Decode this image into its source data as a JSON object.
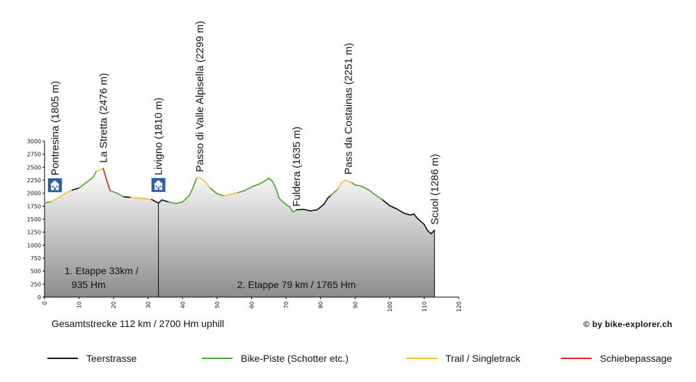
{
  "chart_data": {
    "type": "area",
    "xlim": [
      0,
      120
    ],
    "ylim": [
      0,
      3000
    ],
    "x_ticks": [
      0,
      10,
      20,
      30,
      40,
      50,
      60,
      70,
      80,
      90,
      100,
      110,
      120
    ],
    "y_ticks": [
      0,
      250,
      500,
      750,
      1000,
      1250,
      1500,
      1750,
      2000,
      2250,
      2500,
      2750,
      3000
    ],
    "profile": [
      {
        "x": 0,
        "y": 1810,
        "t": "road"
      },
      {
        "x": 2,
        "y": 1840,
        "t": "bike"
      },
      {
        "x": 4,
        "y": 1910,
        "t": "trail"
      },
      {
        "x": 6,
        "y": 2000,
        "t": "trail"
      },
      {
        "x": 8,
        "y": 2060,
        "t": "trail"
      },
      {
        "x": 10,
        "y": 2100,
        "t": "road"
      },
      {
        "x": 12,
        "y": 2200,
        "t": "bike"
      },
      {
        "x": 14,
        "y": 2300,
        "t": "bike"
      },
      {
        "x": 15,
        "y": 2420,
        "t": "bike"
      },
      {
        "x": 17,
        "y": 2476,
        "t": "trail"
      },
      {
        "x": 18,
        "y": 2250,
        "t": "push"
      },
      {
        "x": 19,
        "y": 2050,
        "t": "push"
      },
      {
        "x": 21,
        "y": 2000,
        "t": "bike"
      },
      {
        "x": 23,
        "y": 1930,
        "t": "bike"
      },
      {
        "x": 25,
        "y": 1920,
        "t": "road"
      },
      {
        "x": 28,
        "y": 1900,
        "t": "trail"
      },
      {
        "x": 30,
        "y": 1890,
        "t": "trail"
      },
      {
        "x": 31,
        "y": 1880,
        "t": "trail"
      },
      {
        "x": 33,
        "y": 1810,
        "t": "road"
      },
      {
        "x": 34,
        "y": 1870,
        "t": "road"
      },
      {
        "x": 36,
        "y": 1830,
        "t": "road"
      },
      {
        "x": 38,
        "y": 1800,
        "t": "bike"
      },
      {
        "x": 40,
        "y": 1830,
        "t": "bike"
      },
      {
        "x": 42,
        "y": 1960,
        "t": "bike"
      },
      {
        "x": 43,
        "y": 2100,
        "t": "bike"
      },
      {
        "x": 44,
        "y": 2290,
        "t": "bike"
      },
      {
        "x": 45,
        "y": 2299,
        "t": "trail"
      },
      {
        "x": 46,
        "y": 2250,
        "t": "trail"
      },
      {
        "x": 48,
        "y": 2100,
        "t": "trail"
      },
      {
        "x": 50,
        "y": 1990,
        "t": "bike"
      },
      {
        "x": 52,
        "y": 1950,
        "t": "bike"
      },
      {
        "x": 54,
        "y": 1980,
        "t": "trail"
      },
      {
        "x": 56,
        "y": 2010,
        "t": "trail"
      },
      {
        "x": 58,
        "y": 2050,
        "t": "bike"
      },
      {
        "x": 60,
        "y": 2120,
        "t": "bike"
      },
      {
        "x": 62,
        "y": 2170,
        "t": "bike"
      },
      {
        "x": 64,
        "y": 2240,
        "t": "bike"
      },
      {
        "x": 65,
        "y": 2290,
        "t": "bike"
      },
      {
        "x": 66,
        "y": 2230,
        "t": "bike"
      },
      {
        "x": 67,
        "y": 2100,
        "t": "bike"
      },
      {
        "x": 68,
        "y": 1900,
        "t": "bike"
      },
      {
        "x": 70,
        "y": 1780,
        "t": "bike"
      },
      {
        "x": 71,
        "y": 1740,
        "t": "bike"
      },
      {
        "x": 72,
        "y": 1635,
        "t": "bike"
      },
      {
        "x": 73,
        "y": 1680,
        "t": "bike"
      },
      {
        "x": 75,
        "y": 1690,
        "t": "road"
      },
      {
        "x": 77,
        "y": 1660,
        "t": "road"
      },
      {
        "x": 79,
        "y": 1680,
        "t": "road"
      },
      {
        "x": 81,
        "y": 1790,
        "t": "road"
      },
      {
        "x": 82,
        "y": 1900,
        "t": "road"
      },
      {
        "x": 83,
        "y": 1960,
        "t": "road"
      },
      {
        "x": 85,
        "y": 2080,
        "t": "bike"
      },
      {
        "x": 86,
        "y": 2200,
        "t": "trail"
      },
      {
        "x": 87,
        "y": 2251,
        "t": "trail"
      },
      {
        "x": 89,
        "y": 2200,
        "t": "trail"
      },
      {
        "x": 90,
        "y": 2160,
        "t": "bike"
      },
      {
        "x": 92,
        "y": 2130,
        "t": "bike"
      },
      {
        "x": 94,
        "y": 2060,
        "t": "bike"
      },
      {
        "x": 96,
        "y": 1960,
        "t": "bike"
      },
      {
        "x": 98,
        "y": 1870,
        "t": "bike"
      },
      {
        "x": 100,
        "y": 1760,
        "t": "road"
      },
      {
        "x": 102,
        "y": 1700,
        "t": "road"
      },
      {
        "x": 104,
        "y": 1620,
        "t": "road"
      },
      {
        "x": 106,
        "y": 1580,
        "t": "road"
      },
      {
        "x": 107,
        "y": 1600,
        "t": "road"
      },
      {
        "x": 108,
        "y": 1520,
        "t": "road"
      },
      {
        "x": 110,
        "y": 1400,
        "t": "road"
      },
      {
        "x": 111,
        "y": 1280,
        "t": "road"
      },
      {
        "x": 112,
        "y": 1220,
        "t": "road"
      },
      {
        "x": 113,
        "y": 1286,
        "t": "road"
      }
    ],
    "waypoints": [
      {
        "label": "Pontresina (1805 m)",
        "x": 3,
        "y": 1805,
        "hotel": true
      },
      {
        "label": "La Stretta (2476 m)",
        "x": 17,
        "y": 2476
      },
      {
        "label": "Livigno (1810 m)",
        "x": 33,
        "y": 1810,
        "hotel": true
      },
      {
        "label": "Passo di Valle Alpisella (2299 m)",
        "x": 45,
        "y": 2299
      },
      {
        "label": "Fuldera (1635 m)",
        "x": 73,
        "y": 1635
      },
      {
        "label": "Pass da Costainas (2251 m)",
        "x": 88,
        "y": 2251
      },
      {
        "label": "Scuol (1286 m)",
        "x": 113,
        "y": 1286
      }
    ],
    "stage_divider_x": 33,
    "stages": [
      {
        "line1": "1. Etappe 33km /",
        "line2": "935 Hm",
        "x": 16.5
      },
      {
        "line1": "2. Etappe 79 km / 1765 Hm",
        "line2": "",
        "x": 73
      }
    ],
    "grid": false
  },
  "summary": "Gesamtstrecke 112 km / 2700 Hm uphill",
  "credit": "© by bike-explorer.ch",
  "legend": [
    {
      "key": "road",
      "label": "Teerstrasse",
      "color": "#111111"
    },
    {
      "key": "bike",
      "label": "Bike-Piste (Schotter etc.)",
      "color": "#4aa832"
    },
    {
      "key": "trail",
      "label": "Trail / Singletrack",
      "color": "#f5c12e"
    },
    {
      "key": "push",
      "label": "Schiebepassage",
      "color": "#e8231e"
    }
  ],
  "colors": {
    "road": "#111111",
    "bike": "#4aa832",
    "trail": "#f5c12e",
    "push": "#e8231e",
    "area_top": "#ffffff",
    "area_bottom": "#8c8c8c",
    "hotel": "#2c5fa0"
  }
}
